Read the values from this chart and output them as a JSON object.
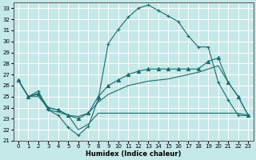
{
  "xlabel": "Humidex (Indice chaleur)",
  "bg_color": "#c5e8e8",
  "grid_color": "#ffffff",
  "line_color": "#1a6e6e",
  "xlim": [
    -0.5,
    23.5
  ],
  "ylim": [
    21,
    33.5
  ],
  "yticks": [
    21,
    22,
    23,
    24,
    25,
    26,
    27,
    28,
    29,
    30,
    31,
    32,
    33
  ],
  "xticks": [
    0,
    1,
    2,
    3,
    4,
    5,
    6,
    7,
    8,
    9,
    10,
    11,
    12,
    13,
    14,
    15,
    16,
    17,
    18,
    19,
    20,
    21,
    22,
    23
  ],
  "series": [
    {
      "x": [
        0,
        1,
        2,
        3,
        4,
        5,
        6,
        7,
        8,
        9,
        10,
        11,
        12,
        13,
        14,
        15,
        16,
        17,
        18,
        19,
        20,
        21,
        22,
        23
      ],
      "y": [
        26.5,
        25.0,
        25.5,
        23.8,
        23.3,
        22.2,
        21.5,
        22.3,
        24.8,
        29.8,
        31.1,
        32.2,
        33.0,
        33.3,
        32.8,
        32.3,
        31.8,
        30.5,
        29.5,
        29.5,
        26.3,
        24.7,
        23.3,
        23.3
      ],
      "marker": "+",
      "lw": 0.8
    },
    {
      "x": [
        0,
        1,
        2,
        3,
        4,
        5,
        6,
        7,
        8,
        9,
        10,
        11,
        12,
        13,
        14,
        15,
        16,
        17,
        18,
        19,
        20,
        21,
        22,
        23
      ],
      "y": [
        26.5,
        25.0,
        25.3,
        24.0,
        23.8,
        23.3,
        23.0,
        23.5,
        25.0,
        26.0,
        26.5,
        27.0,
        27.3,
        27.5,
        27.5,
        27.5,
        27.5,
        27.5,
        27.5,
        28.2,
        28.5,
        26.3,
        25.0,
        23.3
      ],
      "marker": "^",
      "lw": 0.8
    },
    {
      "x": [
        0,
        1,
        2,
        3,
        4,
        5,
        6,
        7,
        8,
        9,
        10,
        11,
        12,
        13,
        14,
        15,
        16,
        17,
        18,
        19,
        20,
        21,
        22,
        23
      ],
      "y": [
        26.5,
        25.0,
        25.2,
        23.8,
        23.6,
        23.3,
        23.2,
        23.5,
        24.5,
        25.2,
        25.6,
        26.0,
        26.2,
        26.4,
        26.5,
        26.6,
        26.8,
        27.0,
        27.2,
        27.5,
        27.8,
        26.3,
        25.0,
        23.3
      ],
      "marker": null,
      "lw": 0.8
    },
    {
      "x": [
        0,
        1,
        2,
        3,
        4,
        5,
        6,
        7,
        8,
        9,
        10,
        11,
        12,
        13,
        14,
        15,
        16,
        17,
        18,
        19,
        20,
        21,
        22,
        23
      ],
      "y": [
        26.5,
        25.0,
        25.0,
        24.0,
        23.8,
        23.3,
        22.0,
        22.5,
        23.5,
        23.5,
        23.5,
        23.5,
        23.5,
        23.5,
        23.5,
        23.5,
        23.5,
        23.5,
        23.5,
        23.5,
        23.5,
        23.5,
        23.5,
        23.3
      ],
      "marker": null,
      "lw": 0.8
    }
  ]
}
